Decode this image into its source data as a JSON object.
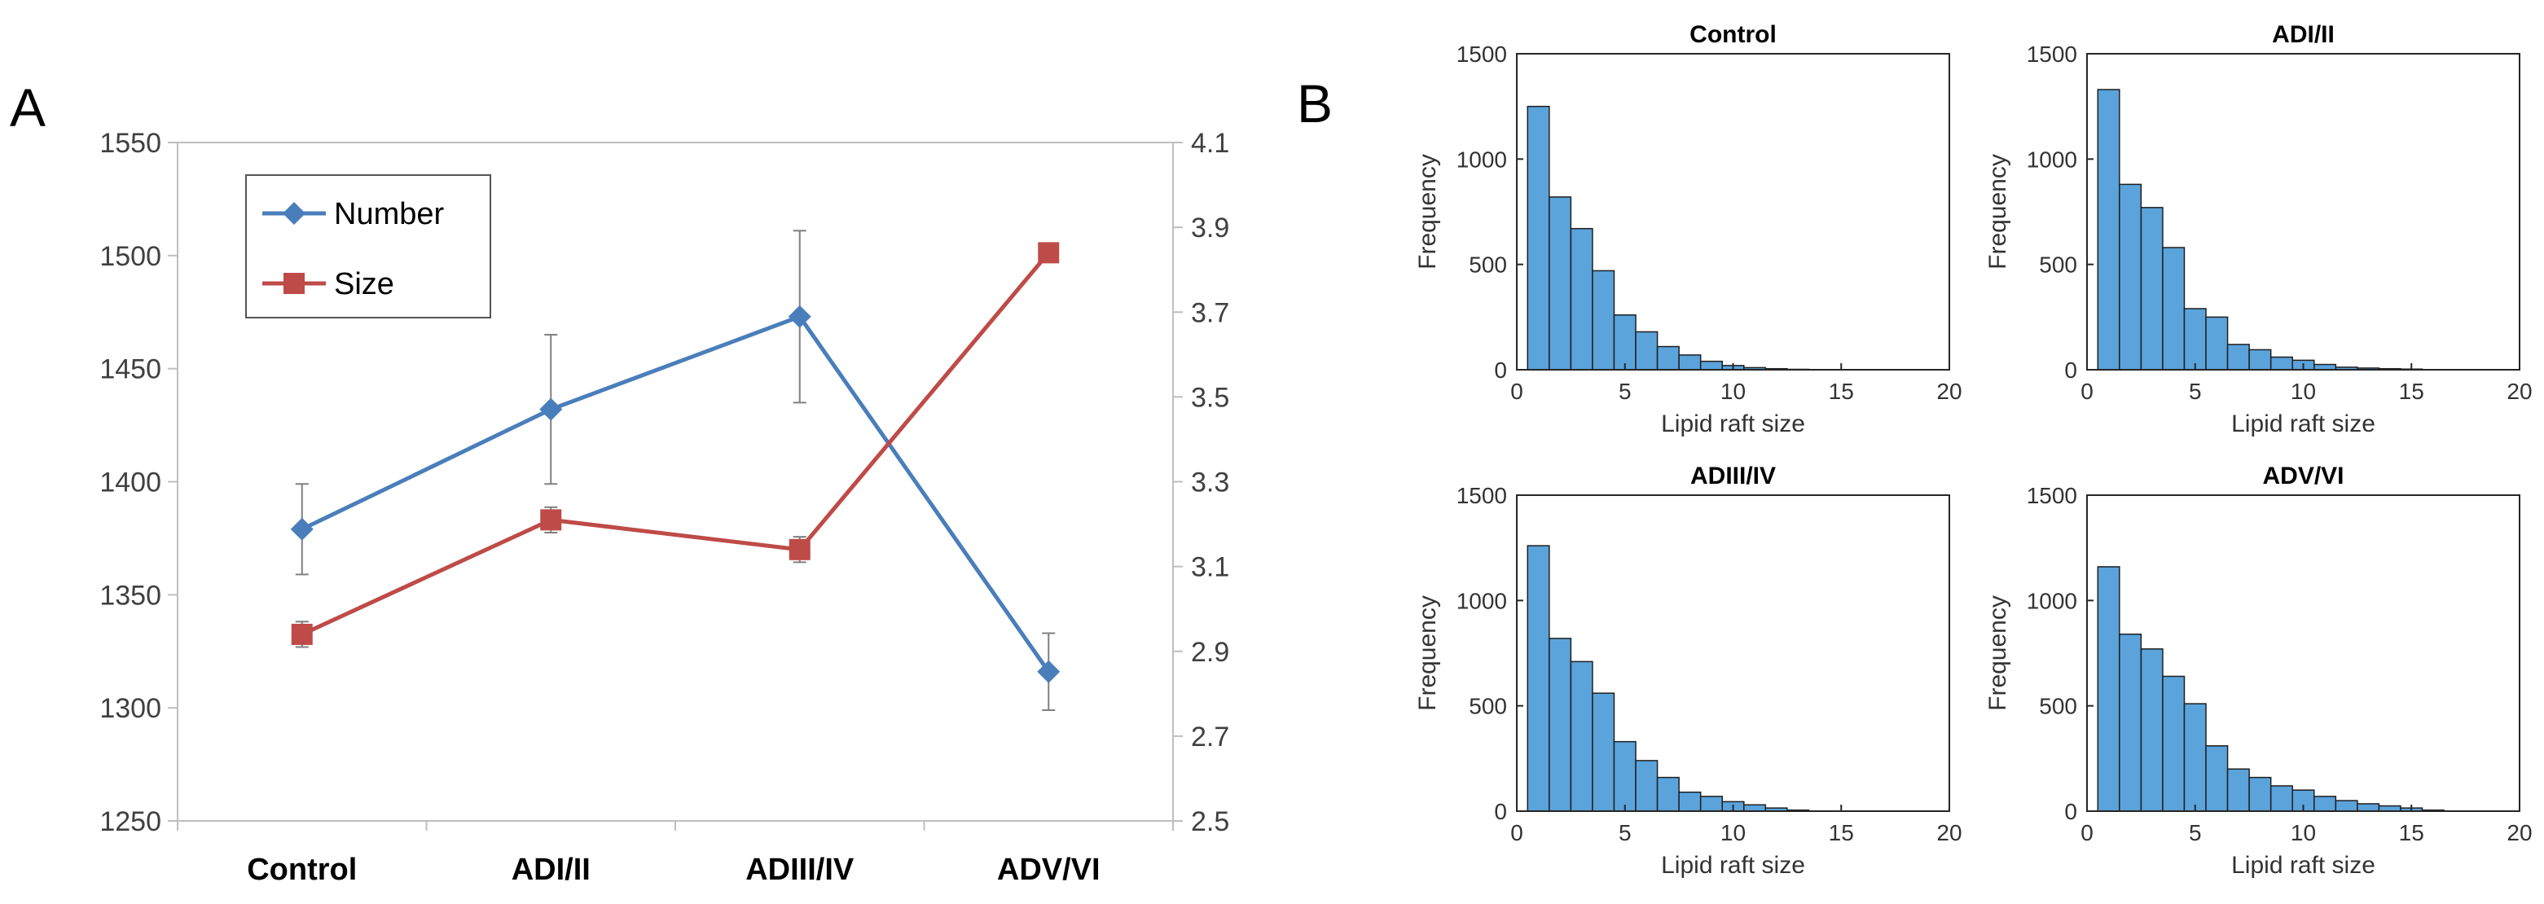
{
  "panels": {
    "a_label": "A",
    "b_label": "B"
  },
  "chart_data": [
    {
      "type": "line",
      "panel": "A",
      "categories": [
        "Control",
        "ADI/II",
        "ADIII/IV",
        "ADV/VI"
      ],
      "series": [
        {
          "name": "Number",
          "axis": "left",
          "color": "#4a7ebb",
          "marker": "diamond",
          "values": [
            1379,
            1432,
            1473,
            1316
          ],
          "error": [
            20,
            33,
            38,
            17
          ]
        },
        {
          "name": "Size",
          "axis": "right",
          "color": "#be4b48",
          "marker": "square",
          "values": [
            2.94,
            3.21,
            3.14,
            3.84
          ],
          "error": [
            0.03,
            0.03,
            0.03,
            0
          ]
        }
      ],
      "y_left": {
        "range": [
          1250,
          1550
        ],
        "ticks": [
          "1250",
          "1300",
          "1350",
          "1400",
          "1450",
          "1500",
          "1550"
        ]
      },
      "y_right": {
        "range": [
          2.5,
          4.1
        ],
        "ticks": [
          "2.5",
          "2.7",
          "2.9",
          "3.1",
          "3.3",
          "3.5",
          "3.7",
          "3.9",
          "4.1"
        ]
      },
      "legend": "top-left",
      "grid": false
    },
    {
      "type": "bar",
      "subtype": "histogram",
      "panel": "B",
      "bar_color": "#5ba3db",
      "xlabel": "Lipid raft size",
      "ylabel": "Frequency",
      "xlim": [
        0,
        20
      ],
      "ylim": [
        0,
        1500
      ],
      "bin_width": 1,
      "x_ticks": [
        "0",
        "5",
        "10",
        "15",
        "20"
      ],
      "y_ticks": [
        "0",
        "500",
        "1000",
        "1500"
      ],
      "histograms": [
        {
          "title": "Control",
          "counts": [
            1250,
            820,
            670,
            470,
            260,
            180,
            110,
            70,
            40,
            20,
            10,
            5,
            2,
            0,
            0,
            0,
            0,
            0,
            0
          ]
        },
        {
          "title": "ADI/II",
          "counts": [
            1330,
            880,
            770,
            580,
            290,
            250,
            120,
            95,
            60,
            45,
            25,
            12,
            8,
            5,
            3,
            0,
            0,
            0,
            0
          ]
        },
        {
          "title": "ADIII/IV",
          "counts": [
            1260,
            820,
            710,
            560,
            330,
            240,
            160,
            90,
            70,
            45,
            30,
            15,
            5,
            0,
            0,
            0,
            0,
            0,
            0
          ]
        },
        {
          "title": "ADV/VI",
          "counts": [
            1160,
            840,
            770,
            640,
            510,
            310,
            200,
            160,
            120,
            100,
            70,
            50,
            35,
            25,
            15,
            5,
            0,
            0,
            0
          ]
        }
      ]
    }
  ]
}
